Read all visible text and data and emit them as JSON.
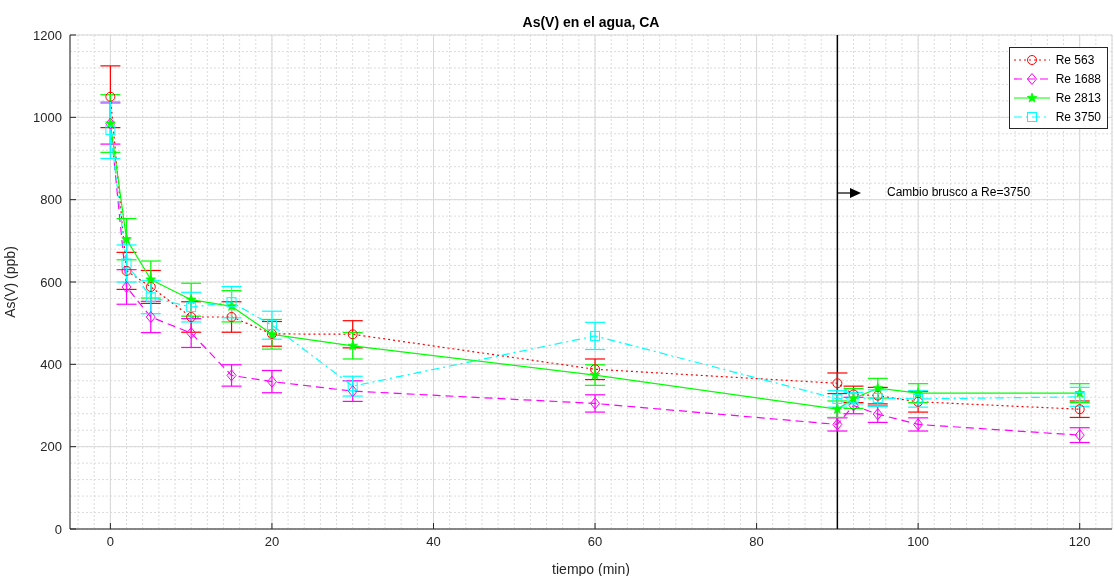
{
  "chart_data": {
    "type": "line",
    "title": "As(V) en el agua, CA",
    "xlabel": "tiempo (min)",
    "ylabel": "As(V) (ppb)",
    "x": [
      0,
      2,
      5,
      10,
      15,
      20,
      30,
      60,
      90,
      92,
      95,
      100,
      120
    ],
    "series": [
      {
        "name": "Re 563",
        "color": "#ff0000",
        "marker": "circle",
        "line_style": "dotted",
        "values": [
          1050,
          627,
          588,
          515,
          515,
          474,
          473,
          388,
          354,
          327,
          324,
          309,
          291
        ],
        "errors": [
          75,
          45,
          40,
          37,
          37,
          30,
          33,
          25,
          25,
          20,
          20,
          25,
          20
        ]
      },
      {
        "name": "Re 1688",
        "color": "#ff00ff",
        "marker": "diamond",
        "line_style": "dashed",
        "values": [
          985,
          588,
          515,
          476,
          373,
          358,
          335,
          305,
          254,
          300,
          279,
          254,
          228
        ],
        "errors": [
          50,
          42,
          38,
          35,
          26,
          27,
          25,
          21,
          16,
          20,
          20,
          16,
          18
        ]
      },
      {
        "name": "Re 2813",
        "color": "#00ff00",
        "marker": "star",
        "line_style": "solid",
        "values": [
          985,
          704,
          606,
          557,
          541,
          473,
          445,
          374,
          291,
          317,
          342,
          330,
          330
        ],
        "errors": [
          70,
          50,
          45,
          40,
          38,
          36,
          32,
          25,
          20,
          24,
          24,
          23,
          23
        ]
      },
      {
        "name": "Re 3750",
        "color": "#00ffff",
        "marker": "square",
        "line_style": "dashdot",
        "values": [
          969,
          645,
          563,
          539,
          551,
          495,
          347,
          469,
          316,
          318,
          318,
          316,
          321
        ],
        "errors": [
          69,
          45,
          40,
          36,
          38,
          34,
          24,
          33,
          20,
          14,
          20,
          20,
          23
        ]
      }
    ],
    "xlim": [
      -5,
      124
    ],
    "xticks": [
      0,
      20,
      40,
      60,
      80,
      100,
      120
    ],
    "ylim": [
      0,
      1200
    ],
    "yticks": [
      0,
      200,
      400,
      600,
      800,
      1000,
      1200
    ],
    "grid": true,
    "legend": "top right",
    "ref_lines": [
      {
        "axis": "x",
        "value": 90,
        "color": "#000000",
        "line_style": "solid"
      }
    ],
    "annotations": [
      "Cambio brusco a Re=3750"
    ]
  }
}
